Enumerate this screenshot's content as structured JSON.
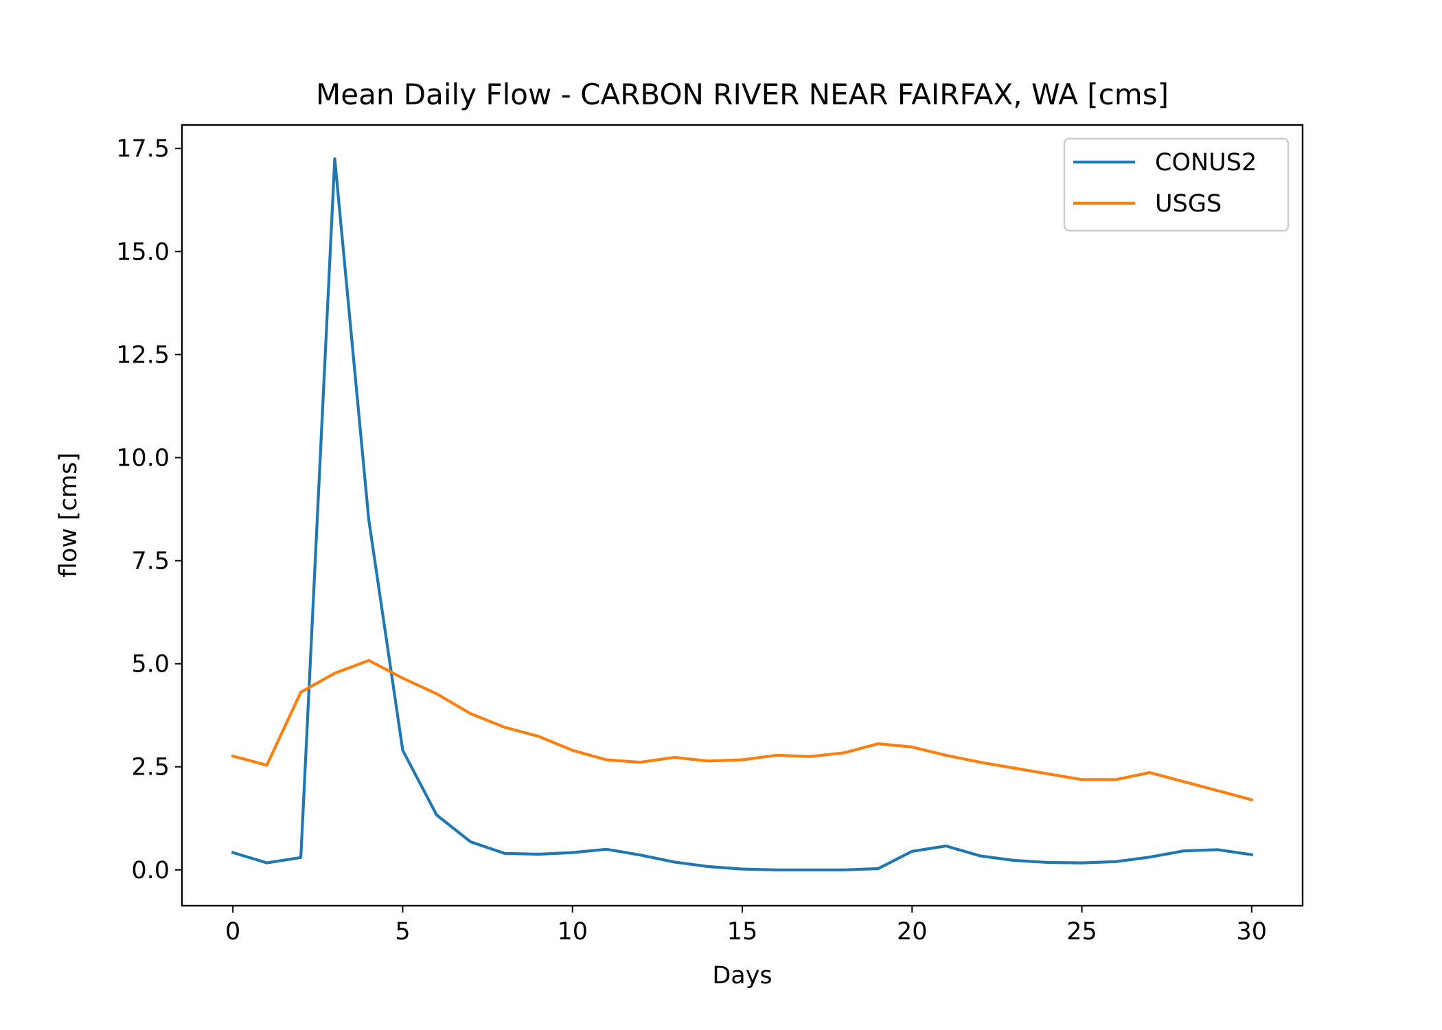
{
  "chart_data": {
    "type": "line",
    "title": "Mean Daily Flow - CARBON RIVER NEAR FAIRFAX, WA [cms]",
    "xlabel": "Days",
    "ylabel": "flow [cms]",
    "xlim": [
      -1.5,
      31.5
    ],
    "ylim": [
      -0.87,
      18.07
    ],
    "xticks": [
      0,
      5,
      10,
      15,
      20,
      25,
      30
    ],
    "xtick_labels": [
      "0",
      "5",
      "10",
      "15",
      "20",
      "25",
      "30"
    ],
    "yticks": [
      0,
      2.5,
      5,
      7.5,
      10,
      12.5,
      15,
      17.5
    ],
    "ytick_labels": [
      "0.0",
      "2.5",
      "5.0",
      "7.5",
      "10.0",
      "12.5",
      "15.0",
      "17.5"
    ],
    "grid": false,
    "legend_position": "top-right",
    "x": [
      0,
      1,
      2,
      3,
      4,
      5,
      6,
      7,
      8,
      9,
      10,
      11,
      12,
      13,
      14,
      15,
      16,
      17,
      18,
      19,
      20,
      21,
      22,
      23,
      24,
      25,
      26,
      27,
      28,
      29,
      30
    ],
    "series": [
      {
        "name": "CONUS2",
        "color": "#1f77b4",
        "values": [
          0.42,
          0.17,
          0.3,
          17.25,
          8.5,
          2.9,
          1.33,
          0.68,
          0.4,
          0.38,
          0.42,
          0.5,
          0.36,
          0.19,
          0.08,
          0.02,
          0.0,
          0.0,
          0.0,
          0.03,
          0.45,
          0.58,
          0.34,
          0.23,
          0.18,
          0.17,
          0.2,
          0.31,
          0.46,
          0.49,
          0.37
        ]
      },
      {
        "name": "USGS",
        "color": "#ff7f0e",
        "values": [
          2.76,
          2.54,
          4.31,
          4.77,
          5.08,
          4.65,
          4.27,
          3.79,
          3.46,
          3.24,
          2.9,
          2.67,
          2.61,
          2.73,
          2.64,
          2.67,
          2.78,
          2.75,
          2.84,
          3.06,
          2.98,
          2.78,
          2.61,
          2.47,
          2.33,
          2.19,
          2.19,
          2.36,
          2.14,
          1.92,
          1.7
        ]
      }
    ]
  }
}
